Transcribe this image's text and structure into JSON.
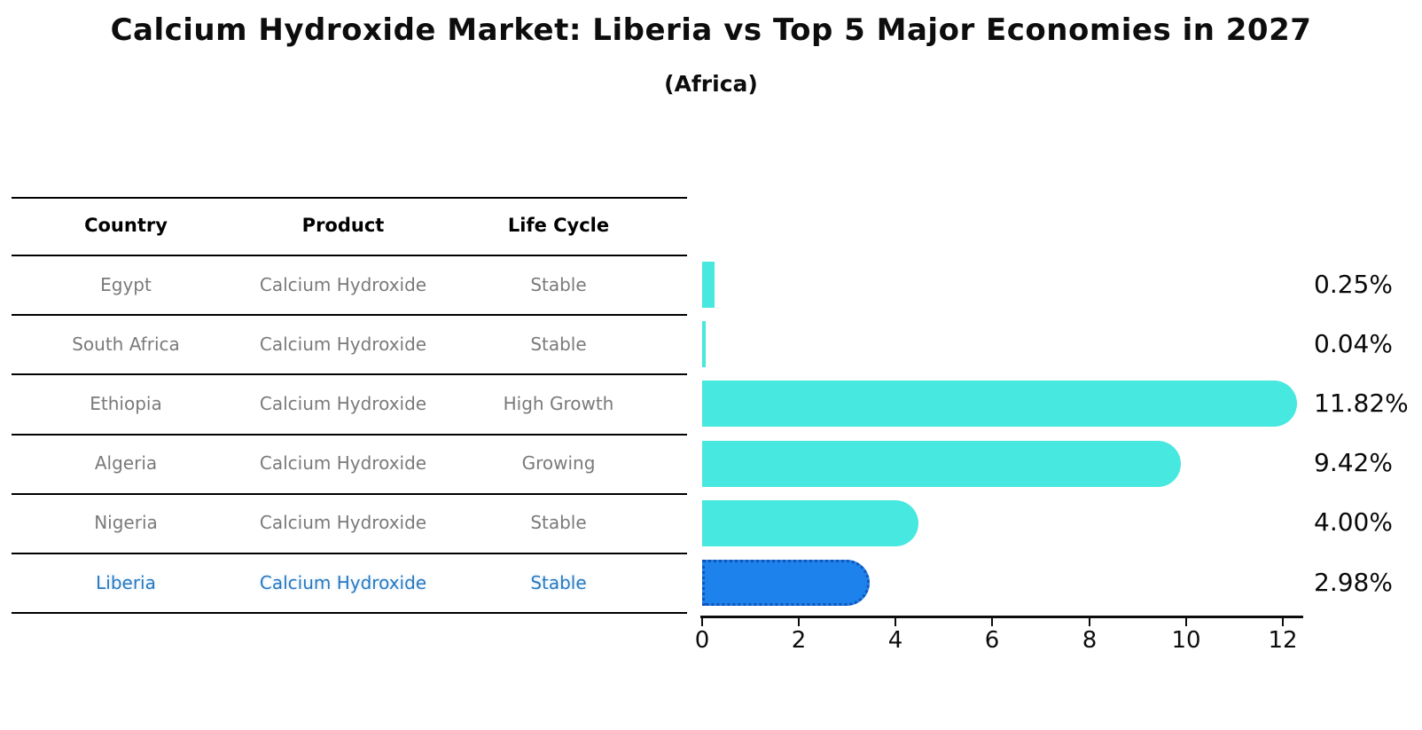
{
  "chart": {
    "title": "Calcium Hydroxide Market: Liberia vs Top 5 Major Economies in 2027",
    "subtitle": "(Africa)"
  },
  "table": {
    "headers": [
      "Country",
      "Product",
      "Life Cycle"
    ]
  },
  "rows": [
    {
      "country": "Egypt",
      "product": "Calcium Hydroxide",
      "life_cycle": "Stable",
      "value": 0.25,
      "value_label": "0.25%",
      "highlight": false
    },
    {
      "country": "South Africa",
      "product": "Calcium Hydroxide",
      "life_cycle": "Stable",
      "value": 0.04,
      "value_label": "0.04%",
      "highlight": false
    },
    {
      "country": "Ethiopia",
      "product": "Calcium Hydroxide",
      "life_cycle": "High Growth",
      "value": 11.82,
      "value_label": "11.82%",
      "highlight": false
    },
    {
      "country": "Algeria",
      "product": "Calcium Hydroxide",
      "life_cycle": "Growing",
      "value": 9.42,
      "value_label": "9.42%",
      "highlight": false
    },
    {
      "country": "Nigeria",
      "product": "Calcium Hydroxide",
      "life_cycle": "Stable",
      "value": 4.0,
      "value_label": "4.00%",
      "highlight": false
    },
    {
      "country": "Liberia",
      "product": "Calcium Hydroxide",
      "life_cycle": "Stable",
      "value": 2.98,
      "value_label": "2.98%",
      "highlight": true
    }
  ],
  "chart_data": {
    "type": "bar",
    "orientation": "horizontal",
    "title": "Calcium Hydroxide Market: Liberia vs Top 5 Major Economies in 2027",
    "subtitle": "(Africa)",
    "categories": [
      "Egypt",
      "South Africa",
      "Ethiopia",
      "Algeria",
      "Nigeria",
      "Liberia"
    ],
    "values": [
      0.25,
      0.04,
      11.82,
      9.42,
      4.0,
      2.98
    ],
    "value_labels": [
      "0.25%",
      "0.04%",
      "11.82%",
      "9.42%",
      "4.00%",
      "2.98%"
    ],
    "xticks": [
      0,
      2,
      4,
      6,
      8,
      10,
      12
    ],
    "xlim": [
      0,
      12.4
    ],
    "grid": false,
    "legend": false
  },
  "colors": {
    "bar": "#47e8e0",
    "highlight_bar": "#1e82ec",
    "highlight_border": "#1254b8",
    "highlight_text": "#2878be",
    "body_text": "#7a7a7a",
    "axis": "#0d0d0d"
  }
}
